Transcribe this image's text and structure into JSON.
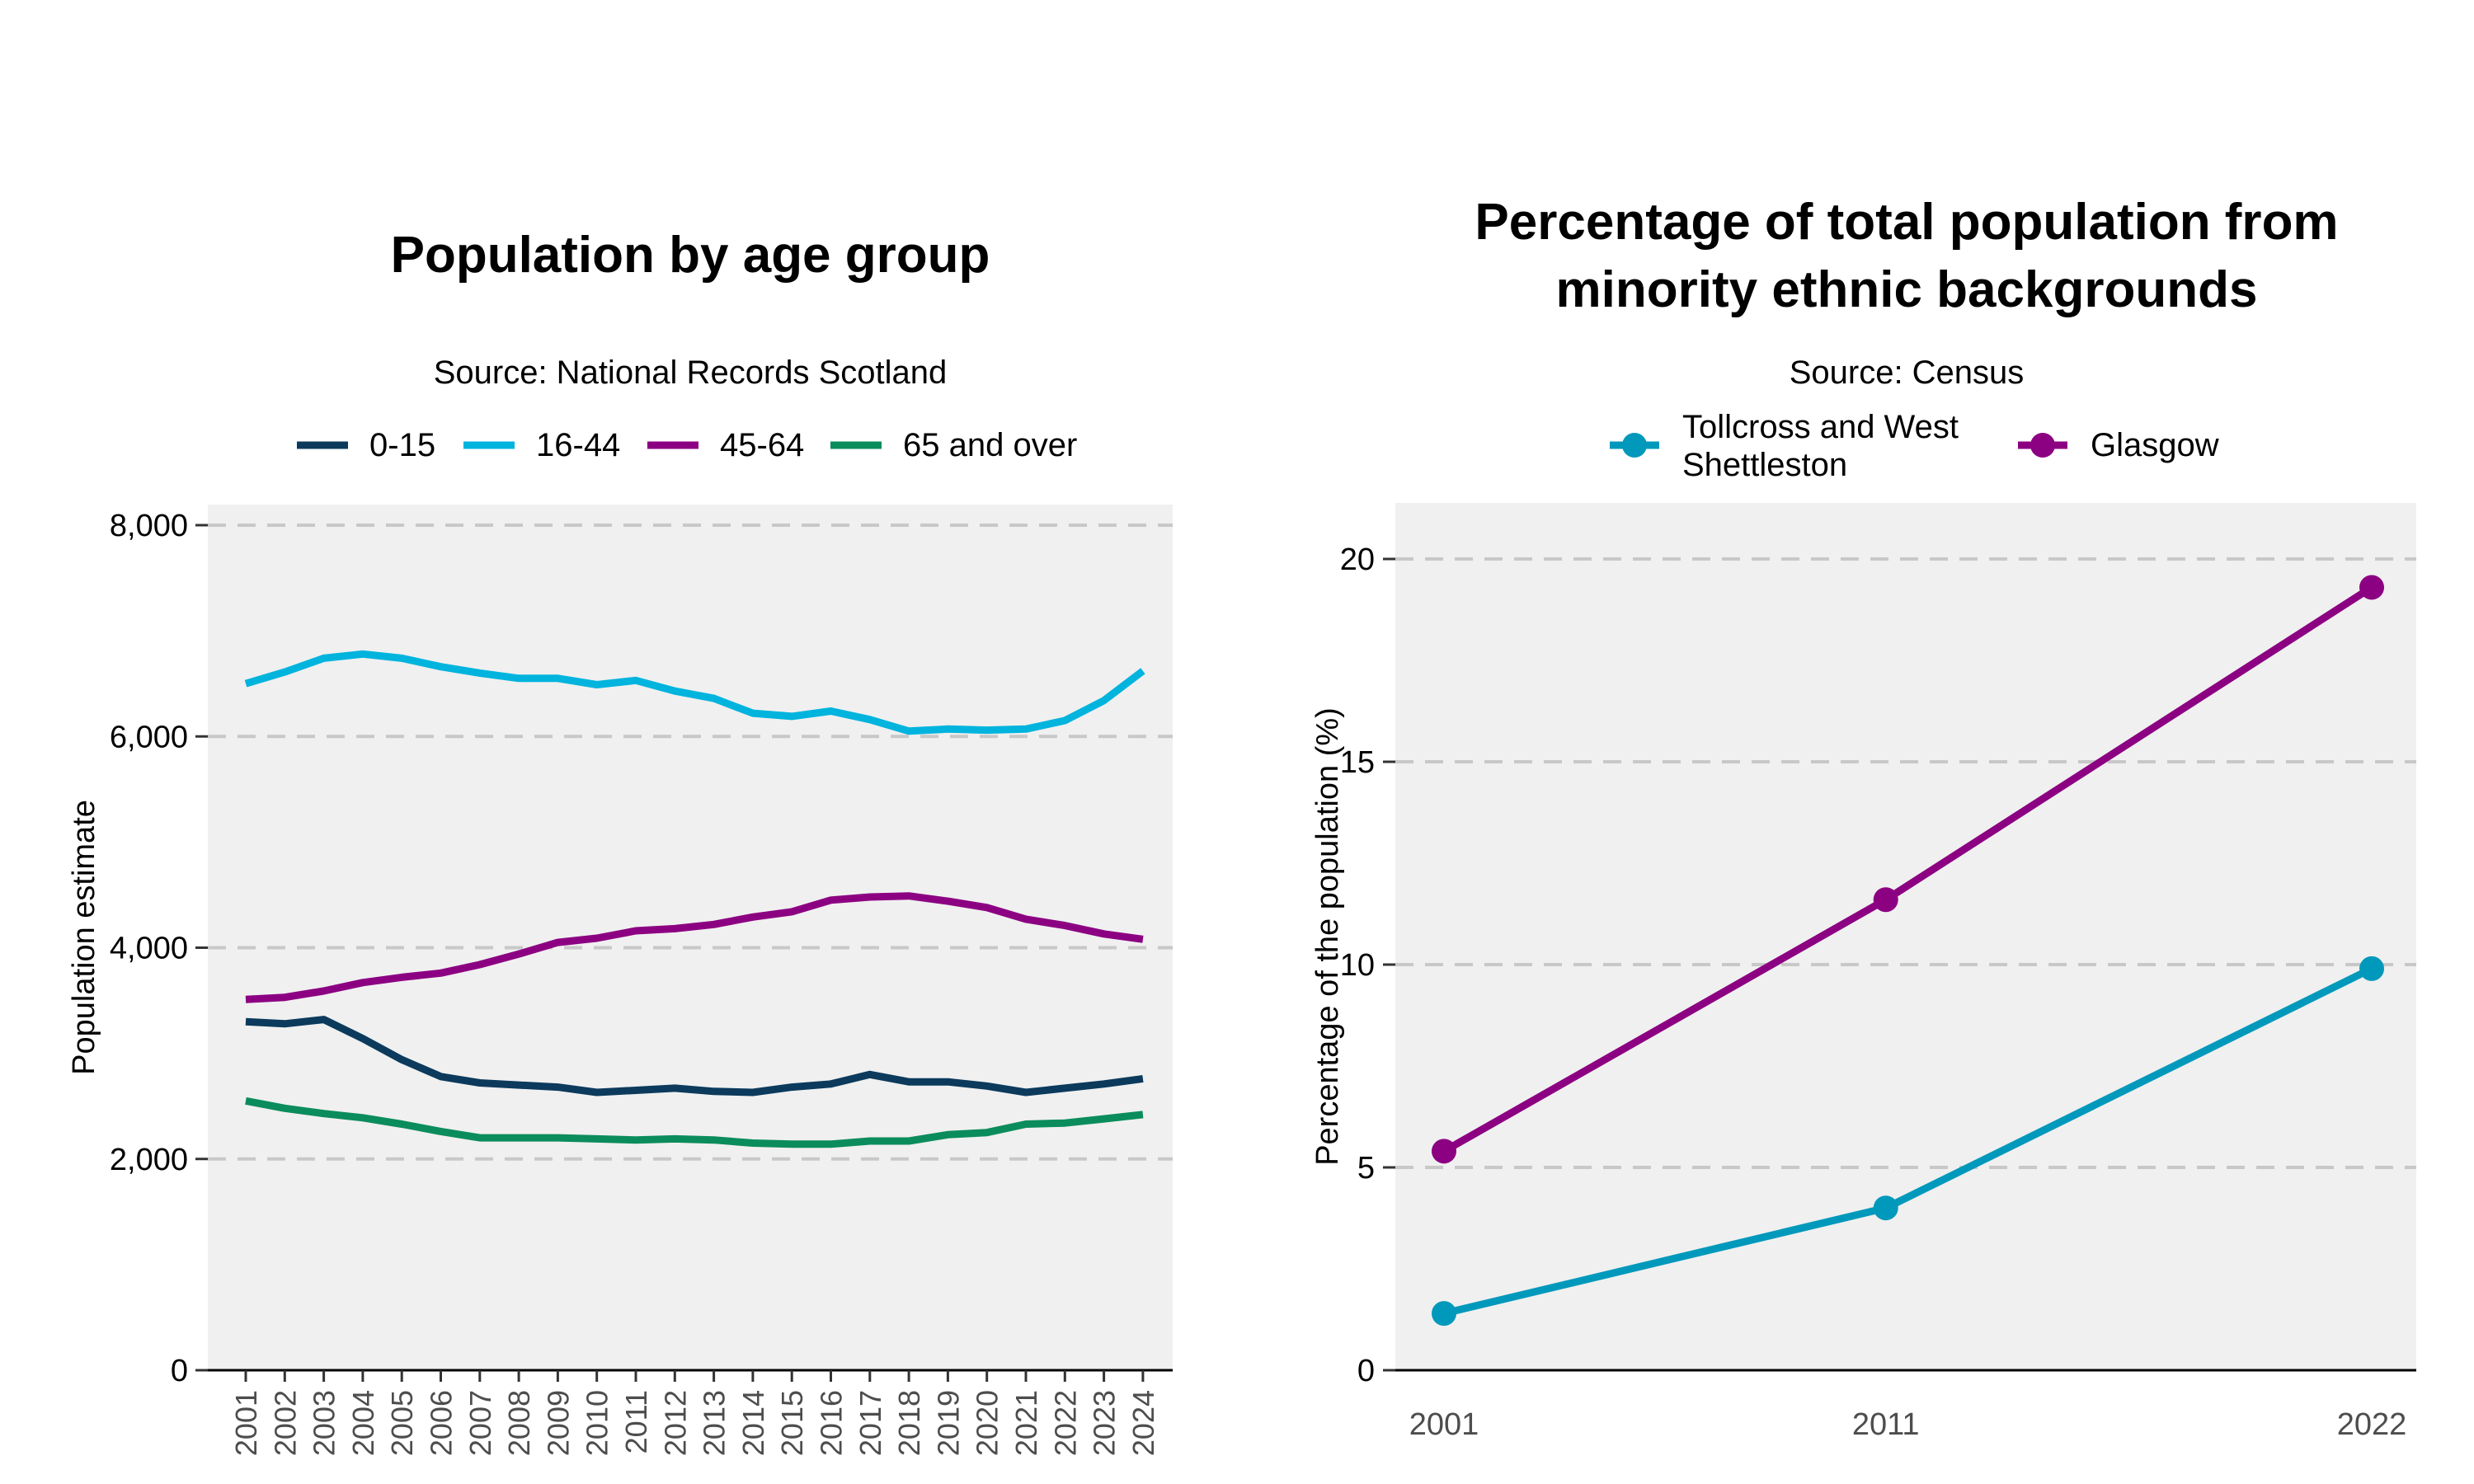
{
  "chart_data": [
    {
      "type": "line",
      "title": "Population by age group",
      "subtitle": "Source: National Records Scotland",
      "xlabel": "",
      "ylabel": "Population estimate",
      "ylim": [
        0,
        8000
      ],
      "yticks": [
        "0",
        "2,000",
        "4,000",
        "6,000",
        "8,000"
      ],
      "ytick_values": [
        0,
        2000,
        4000,
        6000,
        8000
      ],
      "grid": "horizontal dashed",
      "legend_position": "top",
      "x": [
        "2001",
        "2002",
        "2003",
        "2004",
        "2005",
        "2006",
        "2007",
        "2008",
        "2009",
        "2010",
        "2011",
        "2012",
        "2013",
        "2014",
        "2015",
        "2016",
        "2017",
        "2018",
        "2019",
        "2020",
        "2021",
        "2022",
        "2023",
        "2024"
      ],
      "series": [
        {
          "name": "0-15",
          "color": "#0b3a5c",
          "values": [
            3300,
            3280,
            3320,
            3140,
            2940,
            2780,
            2720,
            2700,
            2680,
            2630,
            2650,
            2670,
            2640,
            2630,
            2680,
            2710,
            2800,
            2730,
            2730,
            2690,
            2630,
            2670,
            2710,
            2760
          ]
        },
        {
          "name": "16-44",
          "color": "#00b4de",
          "values": [
            6500,
            6610,
            6740,
            6780,
            6740,
            6660,
            6600,
            6550,
            6550,
            6490,
            6530,
            6430,
            6360,
            6220,
            6190,
            6240,
            6160,
            6050,
            6070,
            6060,
            6070,
            6150,
            6340,
            6620
          ]
        },
        {
          "name": "45-64",
          "color": "#8c0082",
          "values": [
            3510,
            3530,
            3590,
            3670,
            3720,
            3760,
            3840,
            3940,
            4050,
            4090,
            4160,
            4180,
            4220,
            4290,
            4340,
            4450,
            4480,
            4490,
            4440,
            4380,
            4270,
            4210,
            4130,
            4080
          ]
        },
        {
          "name": "65 and over",
          "color": "#0b8c5c",
          "values": [
            2550,
            2480,
            2430,
            2390,
            2330,
            2260,
            2200,
            2200,
            2200,
            2190,
            2180,
            2190,
            2180,
            2150,
            2140,
            2140,
            2170,
            2170,
            2230,
            2250,
            2330,
            2340,
            2380,
            2420
          ]
        }
      ]
    },
    {
      "type": "line",
      "title": "Percentage of total population from minority ethnic backgrounds",
      "title_lines": [
        "Percentage of total population from",
        "minority ethnic backgrounds"
      ],
      "subtitle": "Source: Census",
      "xlabel": "",
      "ylabel": "Percentage of the population (%)",
      "ylim": [
        0,
        21.5
      ],
      "yticks": [
        "0",
        "5",
        "10",
        "15",
        "20"
      ],
      "ytick_values": [
        0,
        5,
        10,
        15,
        20
      ],
      "grid": "horizontal dashed",
      "legend_position": "top",
      "x": [
        2001,
        2011,
        2022
      ],
      "xticks": [
        "2001",
        "2011",
        "2022"
      ],
      "series": [
        {
          "name": "Tollcross and West Shettleston",
          "name_lines": [
            "Tollcross and West",
            "Shettleston"
          ],
          "color": "#0099bb",
          "values": [
            1.4,
            4.0,
            9.9
          ]
        },
        {
          "name": "Glasgow",
          "color": "#8c0082",
          "values": [
            5.4,
            11.6,
            19.3
          ]
        }
      ]
    }
  ]
}
